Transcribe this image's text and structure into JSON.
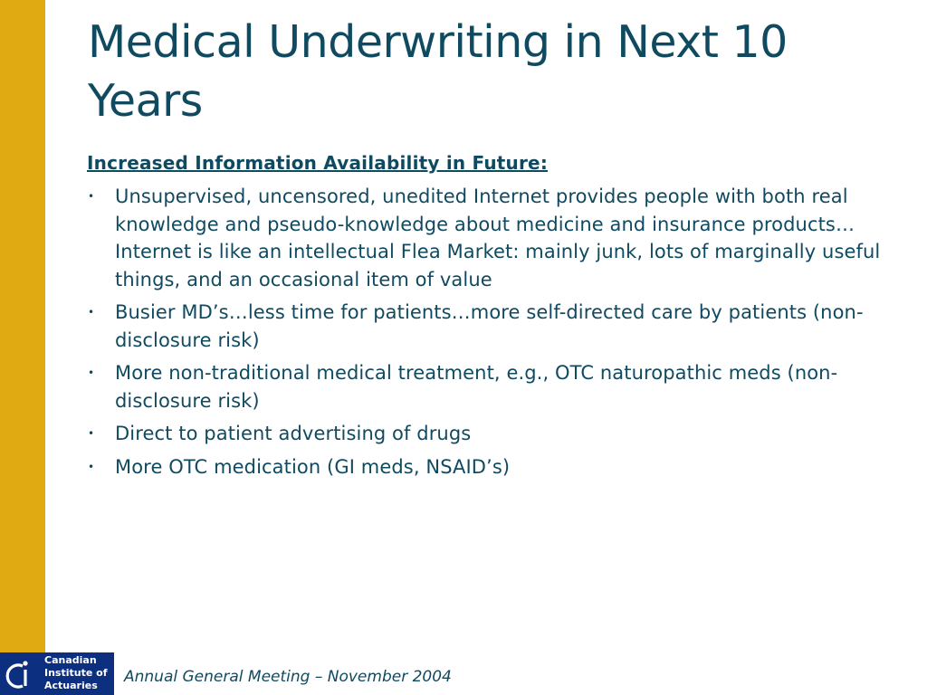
{
  "slide": {
    "title": "Medical Underwriting in Next 10 Years",
    "subheading": "Increased Information Availability in Future:",
    "bullets": [
      "Unsupervised, uncensored, unedited Internet provides people with both real knowledge and pseudo-knowledge about medicine and insurance products…Internet is like an intellectual Flea Market: mainly junk, lots of marginally useful things, and an occasional item of value",
      "Busier MD’s…less time for patients…more self-directed care by patients (non-disclosure risk)",
      "More non-traditional medical treatment, e.g., OTC naturopathic meds (non-disclosure risk)",
      "Direct to patient advertising of drugs",
      "More OTC medication (GI meds, NSAID’s)"
    ],
    "bullet_symbol": "•"
  },
  "footer": {
    "logo_lines": [
      "Canadian",
      "Institute of",
      "Actuaries"
    ],
    "event": "Annual General Meeting – November 2004"
  },
  "colors": {
    "accent_bar": "#e0ab12",
    "text": "#0f4a60",
    "logo_background": "#0d2f80"
  }
}
